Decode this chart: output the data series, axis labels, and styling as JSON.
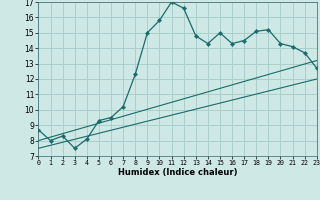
{
  "xlabel": "Humidex (Indice chaleur)",
  "bg_color": "#cde8e5",
  "grid_color": "#aacfcc",
  "line_color": "#1a6b6b",
  "line1_x": [
    0,
    1,
    2,
    3,
    4,
    5,
    6,
    7,
    8,
    9,
    10,
    11,
    12,
    13,
    14,
    15,
    16,
    17,
    18,
    19,
    20,
    21,
    22,
    23
  ],
  "line1_y": [
    8.7,
    8.0,
    8.3,
    7.5,
    8.1,
    9.3,
    9.5,
    10.2,
    12.3,
    15.0,
    15.8,
    17.0,
    16.6,
    14.8,
    14.3,
    15.0,
    14.3,
    14.5,
    15.1,
    15.2,
    14.3,
    14.1,
    13.7,
    12.7
  ],
  "line2_x": [
    0,
    23
  ],
  "line2_y": [
    8.0,
    13.2
  ],
  "line3_x": [
    0,
    23
  ],
  "line3_y": [
    7.5,
    12.0
  ],
  "xlim": [
    0,
    23
  ],
  "ylim": [
    7,
    17
  ],
  "xticks": [
    0,
    1,
    2,
    3,
    4,
    5,
    6,
    7,
    8,
    9,
    10,
    11,
    12,
    13,
    14,
    15,
    16,
    17,
    18,
    19,
    20,
    21,
    22,
    23
  ],
  "yticks": [
    7,
    8,
    9,
    10,
    11,
    12,
    13,
    14,
    15,
    16,
    17
  ]
}
